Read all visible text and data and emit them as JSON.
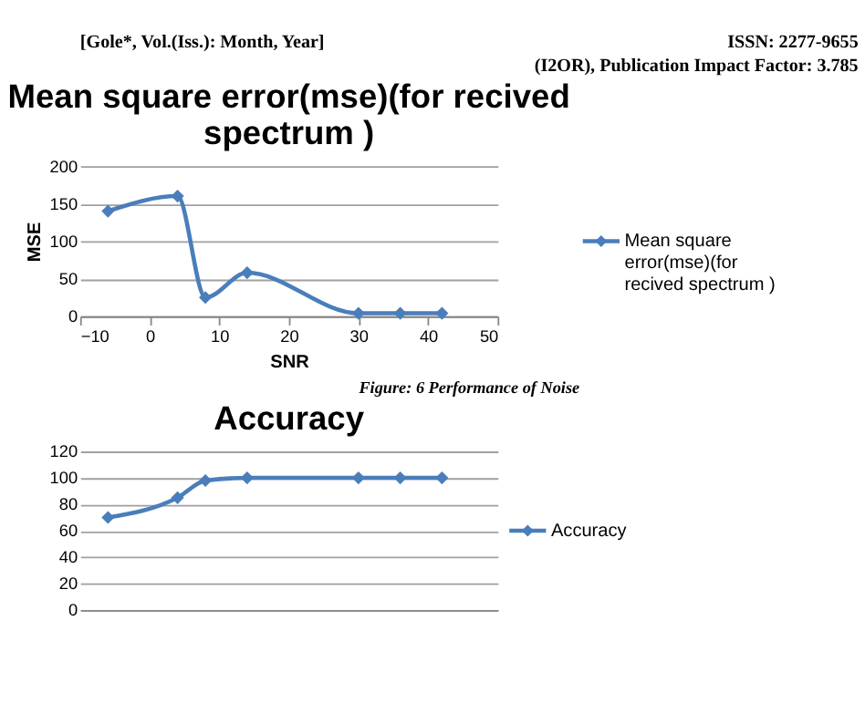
{
  "chart_data": [
    {
      "type": "line",
      "title": "Mean square error(mse)(for recived spectrum  )",
      "xlabel": "SNR",
      "ylabel": "MSE",
      "annotations": [
        "[Gole*, Vol.(Iss.): Month, Year]",
        "ISSN: 2277-9655",
        "(I2OR), Publication Impact Factor: 3.785",
        "Figure: 6 Performance of Noise"
      ],
      "x": [
        -6,
        4,
        8,
        14,
        30,
        36,
        42
      ],
      "series": [
        {
          "name": "Mean square error(mse)(for recived spectrum  )",
          "color": "#4a7ebb",
          "values": [
            140,
            160,
            25,
            58,
            4,
            4,
            4
          ]
        }
      ],
      "xlim": [
        -10,
        50
      ],
      "xticks": [
        -10,
        0,
        10,
        20,
        30,
        40,
        50
      ],
      "ylim": [
        0,
        200
      ],
      "yticks": [
        0,
        50,
        100,
        150,
        200
      ],
      "grid": "y",
      "legend": "right",
      "marker": "diamond",
      "line_style": "solid"
    },
    {
      "type": "line",
      "title": "Accuracy",
      "x": [
        -6,
        4,
        8,
        14,
        30,
        36,
        42
      ],
      "series": [
        {
          "name": "Accuracy",
          "color": "#4a7ebb",
          "values": [
            70,
            85,
            98,
            100,
            100,
            100,
            100
          ]
        }
      ],
      "xlim": [
        -10,
        50
      ],
      "ylim": [
        0,
        120
      ],
      "yticks": [
        0,
        20,
        40,
        60,
        80,
        100,
        120
      ],
      "tick_labels": "y",
      "grid": "y",
      "legend": "right",
      "marker": "diamond",
      "line_style": "solid"
    }
  ]
}
